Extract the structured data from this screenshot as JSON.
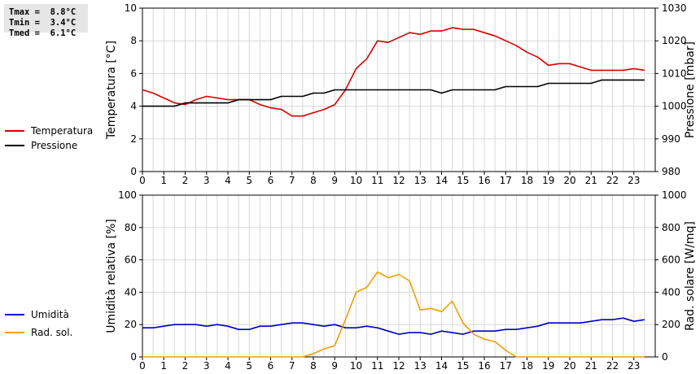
{
  "stats": {
    "tmax": "Tmax =  8.8°C",
    "tmin": "Tmin =  3.4°C",
    "tmed": "Tmed =  6.1°C"
  },
  "chart_data": [
    {
      "type": "line",
      "ylabel": "Temperatura [°C]",
      "y2label": "Pressione [mbar]",
      "xlim": [
        0,
        24
      ],
      "ylim": [
        0,
        10
      ],
      "y2lim": [
        980,
        1030
      ],
      "yticks": [
        0,
        2,
        4,
        6,
        8,
        10
      ],
      "y2ticks": [
        980,
        990,
        1000,
        1010,
        1020,
        1030
      ],
      "xticks": [
        0,
        1,
        2,
        3,
        4,
        5,
        6,
        7,
        8,
        9,
        10,
        11,
        12,
        13,
        14,
        15,
        16,
        17,
        18,
        19,
        20,
        21,
        22,
        23
      ],
      "grid": true,
      "legend_position": "left",
      "series": [
        {
          "name": "Temperatura",
          "axis": "left",
          "color": "#dd0000",
          "x": [
            0,
            0.5,
            1,
            1.5,
            2,
            2.5,
            3,
            3.5,
            4,
            4.5,
            5,
            5.5,
            6,
            6.5,
            7,
            7.5,
            8,
            8.5,
            9,
            9.5,
            10,
            10.5,
            11,
            11.5,
            12,
            12.5,
            13,
            13.5,
            14,
            14.5,
            15,
            15.5,
            16,
            16.5,
            17,
            17.5,
            18,
            18.5,
            19,
            19.5,
            20,
            20.5,
            21,
            21.5,
            22,
            22.5,
            23,
            23.5
          ],
          "values": [
            5.0,
            4.8,
            4.5,
            4.2,
            4.1,
            4.4,
            4.6,
            4.5,
            4.4,
            4.4,
            4.4,
            4.1,
            3.9,
            3.8,
            3.4,
            3.4,
            3.6,
            3.8,
            4.1,
            5.0,
            6.3,
            6.9,
            8.0,
            7.9,
            8.2,
            8.5,
            8.4,
            8.6,
            8.6,
            8.8,
            8.7,
            8.7,
            8.5,
            8.3,
            8.0,
            7.7,
            7.3,
            7.0,
            6.5,
            6.6,
            6.6,
            6.4,
            6.2,
            6.2,
            6.2,
            6.2,
            6.3,
            6.2
          ]
        },
        {
          "name": "Pressione",
          "axis": "right",
          "color": "#000000",
          "x": [
            0,
            0.5,
            1,
            1.5,
            2,
            2.5,
            3,
            3.5,
            4,
            4.5,
            5,
            5.5,
            6,
            6.5,
            7,
            7.5,
            8,
            8.5,
            9,
            9.5,
            10,
            10.5,
            11,
            11.5,
            12,
            12.5,
            13,
            13.5,
            14,
            14.5,
            15,
            15.5,
            16,
            16.5,
            17,
            17.5,
            18,
            18.5,
            19,
            19.5,
            20,
            20.5,
            21,
            21.5,
            22,
            22.5,
            23,
            23.5
          ],
          "values": [
            1000,
            1000,
            1000,
            1000,
            1001,
            1001,
            1001,
            1001,
            1001,
            1002,
            1002,
            1002,
            1002,
            1003,
            1003,
            1003,
            1004,
            1004,
            1005,
            1005,
            1005,
            1005,
            1005,
            1005,
            1005,
            1005,
            1005,
            1005,
            1004,
            1005,
            1005,
            1005,
            1005,
            1005,
            1006,
            1006,
            1006,
            1006,
            1007,
            1007,
            1007,
            1007,
            1007,
            1008,
            1008,
            1008,
            1008,
            1008
          ]
        }
      ]
    },
    {
      "type": "line",
      "ylabel": "Umidità relativa [%]",
      "y2label": "Rad. solare [W/mq]",
      "xlim": [
        0,
        24
      ],
      "ylim": [
        0,
        100
      ],
      "y2lim": [
        0,
        1000
      ],
      "yticks": [
        0,
        20,
        40,
        60,
        80,
        100
      ],
      "y2ticks": [
        0,
        200,
        400,
        600,
        800,
        1000
      ],
      "xticks": [
        0,
        1,
        2,
        3,
        4,
        5,
        6,
        7,
        8,
        9,
        10,
        11,
        12,
        13,
        14,
        15,
        16,
        17,
        18,
        19,
        20,
        21,
        22,
        23
      ],
      "grid": true,
      "legend_position": "left",
      "series": [
        {
          "name": "Umidità",
          "axis": "left",
          "color": "#0000cc",
          "x": [
            0,
            0.5,
            1,
            1.5,
            2,
            2.5,
            3,
            3.5,
            4,
            4.5,
            5,
            5.5,
            6,
            6.5,
            7,
            7.5,
            8,
            8.5,
            9,
            9.5,
            10,
            10.5,
            11,
            11.5,
            12,
            12.5,
            13,
            13.5,
            14,
            14.5,
            15,
            15.5,
            16,
            16.5,
            17,
            17.5,
            18,
            18.5,
            19,
            19.5,
            20,
            20.5,
            21,
            21.5,
            22,
            22.5,
            23,
            23.5
          ],
          "values": [
            18,
            18,
            19,
            20,
            20,
            20,
            19,
            20,
            19,
            17,
            17,
            19,
            19,
            20,
            21,
            21,
            20,
            19,
            20,
            18,
            18,
            19,
            18,
            16,
            14,
            15,
            15,
            14,
            16,
            15,
            14,
            16,
            16,
            16,
            17,
            17,
            18,
            19,
            21,
            21,
            21,
            21,
            22,
            23,
            23,
            24,
            22,
            23
          ]
        },
        {
          "name": "Rad. sol.",
          "axis": "right",
          "color": "#f0a000",
          "x": [
            0,
            0.5,
            1,
            1.5,
            2,
            2.5,
            3,
            3.5,
            4,
            4.5,
            5,
            5.5,
            6,
            6.5,
            7,
            7.5,
            8,
            8.5,
            9,
            9.5,
            10,
            10.5,
            11,
            11.5,
            12,
            12.5,
            13,
            13.5,
            14,
            14.5,
            15,
            15.5,
            16,
            16.5,
            17,
            17.5,
            18,
            18.5,
            19,
            19.5,
            20,
            20.5,
            21,
            21.5,
            22,
            22.5,
            23,
            23.5
          ],
          "values": [
            0,
            0,
            0,
            0,
            0,
            0,
            0,
            0,
            0,
            0,
            0,
            0,
            0,
            0,
            0,
            0,
            20,
            50,
            70,
            230,
            400,
            430,
            525,
            490,
            510,
            470,
            290,
            300,
            280,
            345,
            210,
            140,
            110,
            95,
            40,
            0,
            0,
            0,
            0,
            0,
            0,
            0,
            0,
            0,
            0,
            0,
            0,
            0
          ]
        }
      ]
    }
  ]
}
